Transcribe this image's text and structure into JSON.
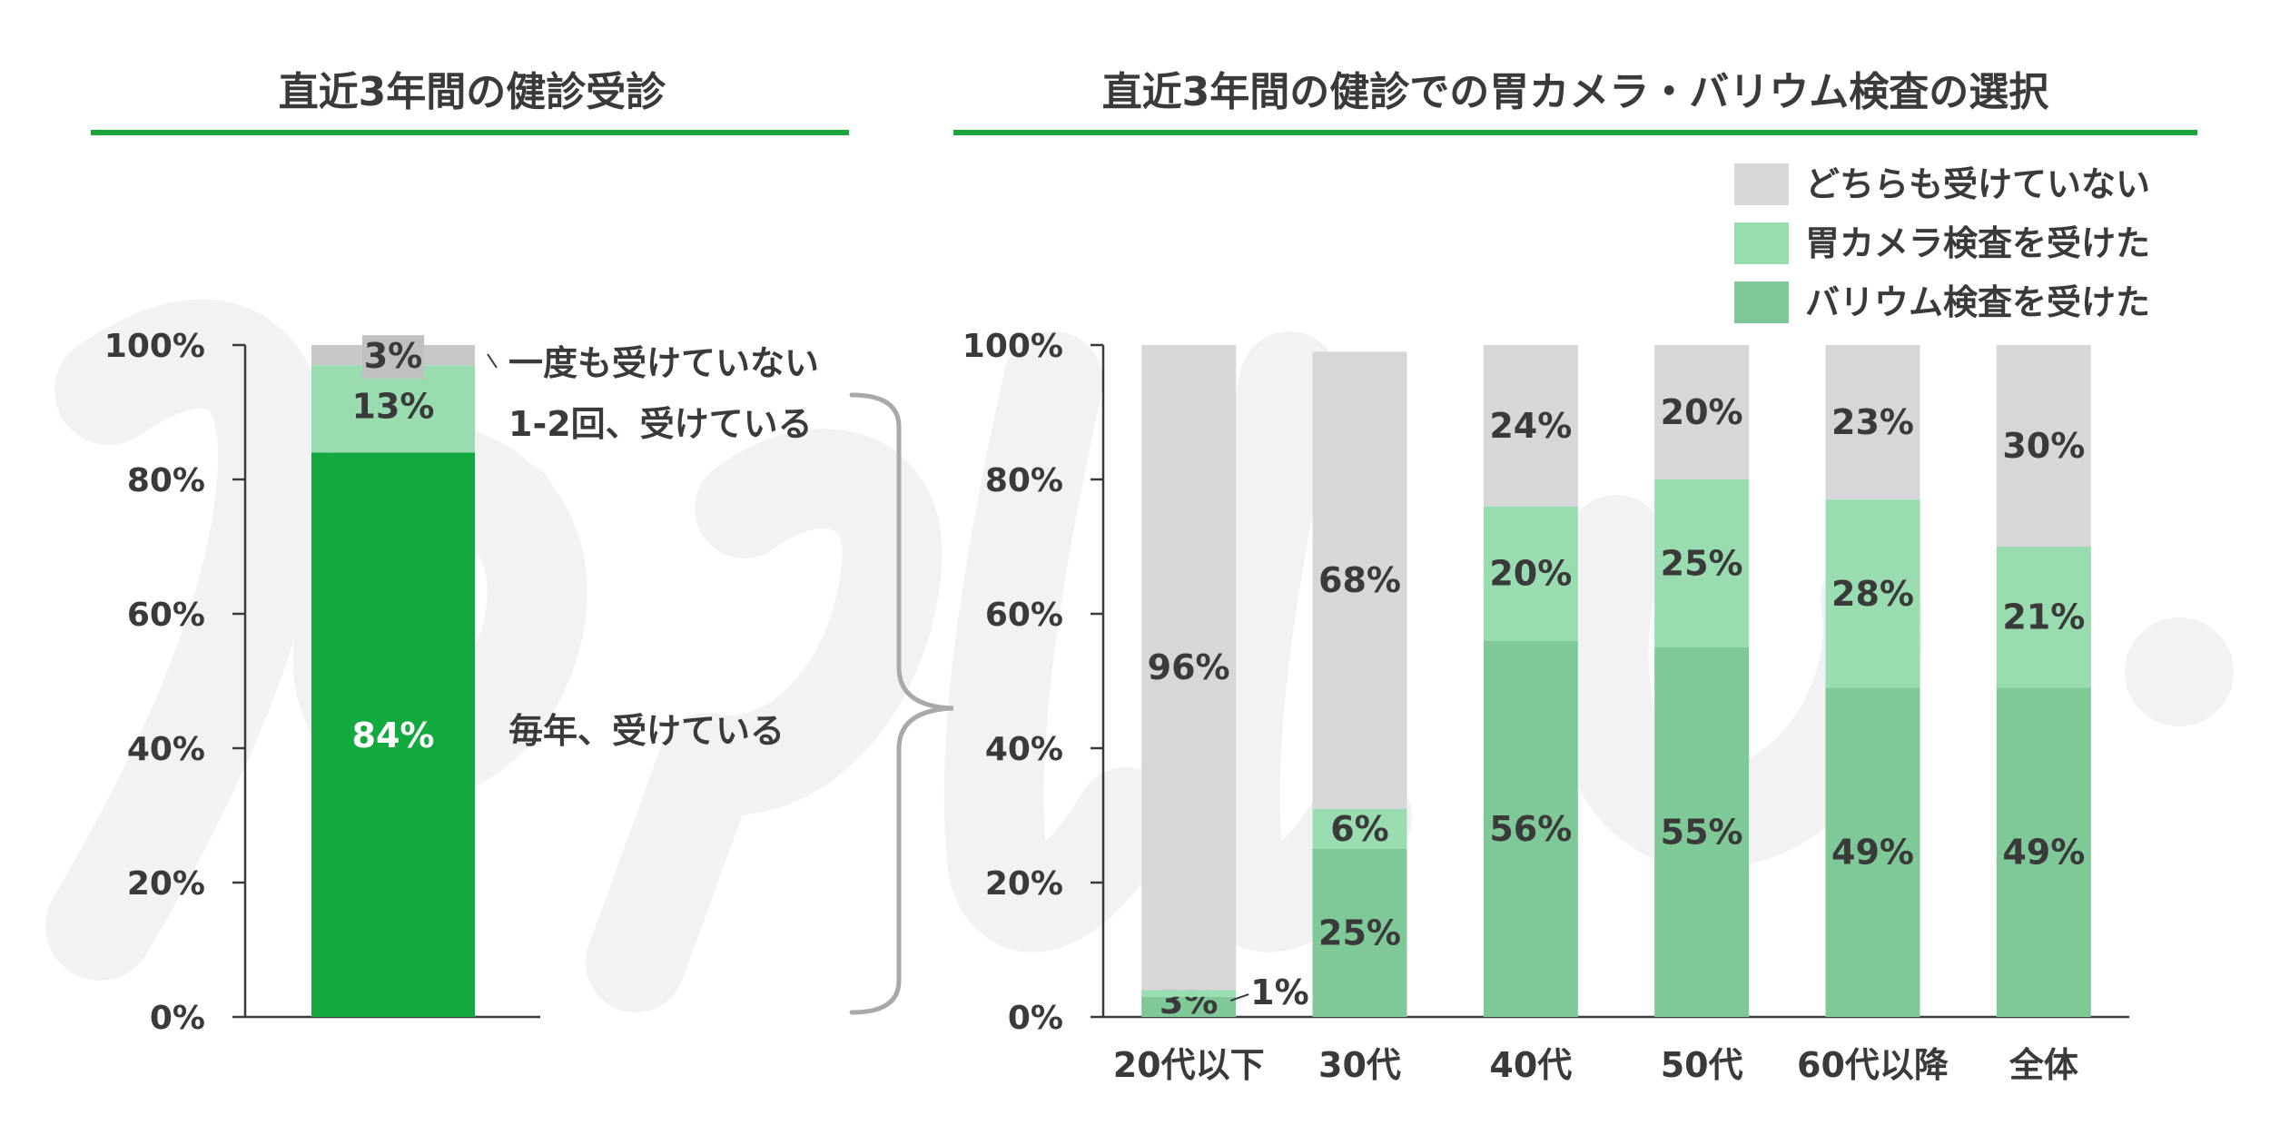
{
  "colors": {
    "none": "#d7d7d9",
    "camera": "#99dcb0",
    "barium": "#7fc998",
    "every_year": "#12aa3f",
    "once_twice": "#99dcb0",
    "never": "#c8c8ca",
    "rule": "#1aa63b",
    "axis": "#3a3a3a",
    "brace": "#a9a9a9"
  },
  "chart_data": [
    {
      "type": "bar",
      "stacked": true,
      "title": "直近3年間の健診受診",
      "ylim": [
        0,
        100
      ],
      "yticks": [
        "0%",
        "20%",
        "40%",
        "60%",
        "80%",
        "100%"
      ],
      "categories": [
        ""
      ],
      "series": [
        {
          "name": "毎年、受けている",
          "values": [
            84
          ],
          "labels": [
            "84%"
          ]
        },
        {
          "name": "1-2回、受けている",
          "values": [
            13
          ],
          "labels": [
            "13%"
          ]
        },
        {
          "name": "一度も受けていない",
          "values": [
            3
          ],
          "labels": [
            "3%"
          ]
        }
      ]
    },
    {
      "type": "bar",
      "stacked": true,
      "title": "直近3年間の健診での胃カメラ・バリウム検査の選択",
      "ylim": [
        0,
        100
      ],
      "yticks": [
        "0%",
        "20%",
        "40%",
        "60%",
        "80%",
        "100%"
      ],
      "categories": [
        "20代以下",
        "30代",
        "40代",
        "50代",
        "60代以降",
        "全体"
      ],
      "legend_position": "top-right",
      "series": [
        {
          "name": "バリウム検査を受けた",
          "values": [
            3,
            25,
            56,
            55,
            49,
            49
          ],
          "labels": [
            "3%",
            "25%",
            "56%",
            "55%",
            "49%",
            "49%"
          ]
        },
        {
          "name": "胃カメラ検査を受けた",
          "values": [
            1,
            6,
            20,
            25,
            28,
            21
          ],
          "labels": [
            "1%",
            "6%",
            "20%",
            "25%",
            "28%",
            "21%"
          ]
        },
        {
          "name": "どちらも受けていない",
          "values": [
            96,
            68,
            24,
            20,
            23,
            30
          ],
          "labels": [
            "96%",
            "68%",
            "24%",
            "20%",
            "23%",
            "30%"
          ]
        }
      ]
    }
  ]
}
